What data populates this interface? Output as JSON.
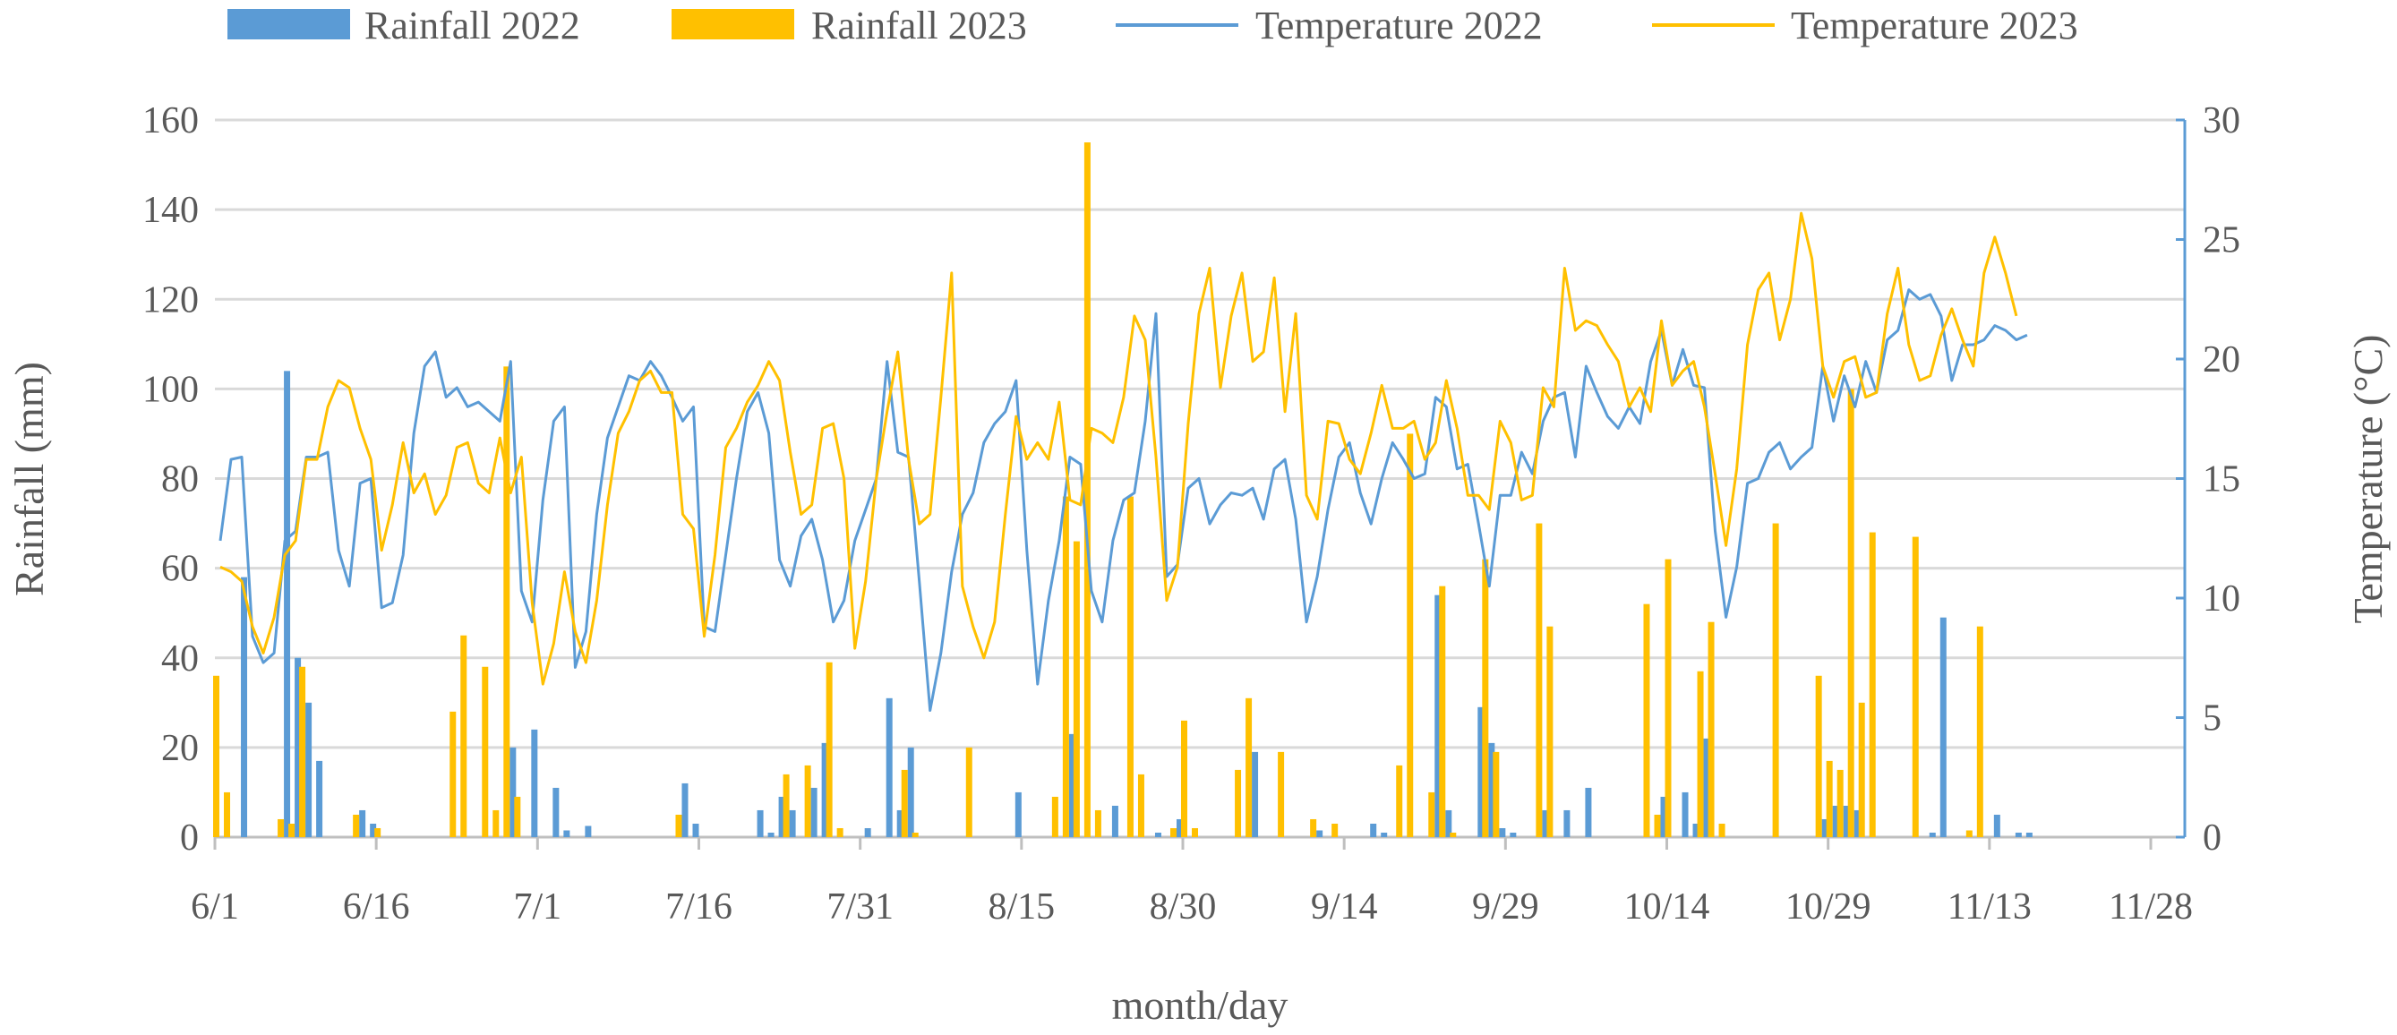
{
  "chart_data": {
    "type": "bar+line",
    "legend_position": "top",
    "legend": [
      "Rainfall 2022",
      "Rainfall 2023",
      "Temperature 2022",
      "Temperature 2023"
    ],
    "xlabel": "month/day",
    "ylabel_left": "Rainfall (mm)",
    "ylabel_right": "Temperature (°C)",
    "ylim_left": [
      0,
      160
    ],
    "ylim_right": [
      0,
      30
    ],
    "yticks_left": [
      "0",
      "20",
      "40",
      "60",
      "80",
      "100",
      "120",
      "140",
      "160"
    ],
    "yticks_right": [
      "0",
      "5",
      "10",
      "15",
      "20",
      "25",
      "30"
    ],
    "x_unit": "day index from 6/1",
    "xlim_days": [
      0,
      180
    ],
    "xticks": [
      {
        "day": 0,
        "label": "6/1"
      },
      {
        "day": 15,
        "label": "6/16"
      },
      {
        "day": 30,
        "label": "7/1"
      },
      {
        "day": 45,
        "label": "7/16"
      },
      {
        "day": 60,
        "label": "7/31"
      },
      {
        "day": 75,
        "label": "8/15"
      },
      {
        "day": 90,
        "label": "8/30"
      },
      {
        "day": 105,
        "label": "9/14"
      },
      {
        "day": 120,
        "label": "9/29"
      },
      {
        "day": 135,
        "label": "10/14"
      },
      {
        "day": 150,
        "label": "10/29"
      },
      {
        "day": 165,
        "label": "11/13"
      },
      {
        "day": 180,
        "label": "11/28"
      }
    ],
    "grid": true,
    "colors": {
      "s2022": "#5B9BD5",
      "s2023": "#FFC000",
      "grid": "#D9D9D9"
    },
    "rainfall_2022": [
      [
        2,
        58
      ],
      [
        6,
        104
      ],
      [
        7,
        40
      ],
      [
        8,
        30
      ],
      [
        9,
        17
      ],
      [
        13,
        6
      ],
      [
        14,
        3
      ],
      [
        27,
        20
      ],
      [
        29,
        24
      ],
      [
        31,
        11
      ],
      [
        32,
        1.5
      ],
      [
        34,
        2.5
      ],
      [
        43,
        12
      ],
      [
        44,
        3
      ],
      [
        50,
        6
      ],
      [
        51,
        1
      ],
      [
        52,
        9
      ],
      [
        53,
        6
      ],
      [
        55,
        11
      ],
      [
        56,
        21
      ],
      [
        60,
        2
      ],
      [
        62,
        31
      ],
      [
        63,
        6
      ],
      [
        64,
        20
      ],
      [
        74,
        10
      ],
      [
        79,
        23
      ],
      [
        83,
        7
      ],
      [
        87,
        1
      ],
      [
        89,
        4
      ],
      [
        96,
        19
      ],
      [
        102,
        1.5
      ],
      [
        107,
        3
      ],
      [
        108,
        1
      ],
      [
        113,
        54
      ],
      [
        114,
        6
      ],
      [
        117,
        29
      ],
      [
        118,
        21
      ],
      [
        119,
        2
      ],
      [
        120,
        1
      ],
      [
        123,
        6
      ],
      [
        125,
        6
      ],
      [
        127,
        11
      ],
      [
        134,
        9
      ],
      [
        136,
        10
      ],
      [
        137,
        3
      ],
      [
        138,
        22
      ],
      [
        149,
        4
      ],
      [
        150,
        7
      ],
      [
        151,
        7
      ],
      [
        152,
        6
      ],
      [
        159,
        1
      ],
      [
        160,
        49
      ],
      [
        165,
        5
      ],
      [
        167,
        1
      ],
      [
        168,
        1
      ]
    ],
    "rainfall_2023": [
      [
        0,
        36
      ],
      [
        1,
        10
      ],
      [
        6,
        4
      ],
      [
        7,
        3
      ],
      [
        8,
        38
      ],
      [
        13,
        5
      ],
      [
        15,
        2
      ],
      [
        22,
        28
      ],
      [
        23,
        45
      ],
      [
        25,
        38
      ],
      [
        26,
        6
      ],
      [
        27,
        105
      ],
      [
        28,
        9
      ],
      [
        43,
        5
      ],
      [
        53,
        14
      ],
      [
        55,
        16
      ],
      [
        57,
        39
      ],
      [
        58,
        2
      ],
      [
        64,
        15
      ],
      [
        65,
        1
      ],
      [
        70,
        20
      ],
      [
        78,
        9
      ],
      [
        79,
        76
      ],
      [
        80,
        66
      ],
      [
        81,
        155
      ],
      [
        82,
        6
      ],
      [
        85,
        76
      ],
      [
        86,
        14
      ],
      [
        89,
        2
      ],
      [
        90,
        26
      ],
      [
        91,
        2
      ],
      [
        95,
        15
      ],
      [
        96,
        31
      ],
      [
        99,
        19
      ],
      [
        102,
        4
      ],
      [
        104,
        3
      ],
      [
        110,
        16
      ],
      [
        111,
        90
      ],
      [
        113,
        10
      ],
      [
        114,
        56
      ],
      [
        115,
        1
      ],
      [
        118,
        62
      ],
      [
        119,
        19
      ],
      [
        123,
        70
      ],
      [
        124,
        47
      ],
      [
        133,
        52
      ],
      [
        134,
        5
      ],
      [
        135,
        62
      ],
      [
        138,
        37
      ],
      [
        139,
        48
      ],
      [
        140,
        3
      ],
      [
        145,
        70
      ],
      [
        149,
        36
      ],
      [
        150,
        17
      ],
      [
        151,
        15
      ],
      [
        152,
        100
      ],
      [
        153,
        30
      ],
      [
        154,
        68
      ],
      [
        158,
        67
      ],
      [
        163,
        1.5
      ],
      [
        164,
        47
      ]
    ],
    "temperature_2022": [
      12.4,
      15.8,
      15.9,
      8.4,
      7.3,
      7.7,
      12.4,
      12.8,
      15.9,
      15.9,
      16.1,
      12.0,
      10.5,
      14.8,
      15.0,
      9.6,
      9.8,
      11.8,
      16.9,
      19.7,
      20.3,
      18.4,
      18.8,
      18.0,
      18.2,
      17.8,
      17.4,
      19.9,
      10.3,
      9.0,
      14.1,
      17.4,
      18.0,
      7.1,
      8.6,
      13.5,
      16.7,
      18.0,
      19.3,
      19.1,
      19.9,
      19.3,
      18.4,
      17.4,
      18.0,
      8.8,
      8.6,
      11.8,
      15.0,
      17.8,
      18.6,
      16.9,
      11.6,
      10.5,
      12.6,
      13.3,
      11.6,
      9.0,
      9.9,
      12.4,
      13.7,
      15.0,
      19.9,
      16.1,
      15.9,
      10.7,
      5.3,
      7.7,
      11.1,
      13.5,
      14.4,
      16.5,
      17.3,
      17.8,
      19.1,
      12.0,
      6.4,
      9.9,
      12.4,
      15.9,
      15.6,
      10.3,
      9.0,
      12.4,
      14.1,
      14.4,
      17.4,
      21.9,
      10.9,
      11.4,
      14.6,
      15.0,
      13.1,
      13.9,
      14.4,
      14.3,
      14.6,
      13.3,
      15.4,
      15.8,
      13.3,
      9.0,
      10.9,
      13.7,
      15.9,
      16.5,
      14.4,
      13.1,
      15.0,
      16.5,
      15.8,
      15.0,
      15.2,
      18.4,
      18.0,
      15.4,
      15.6,
      13.1,
      10.5,
      14.3,
      14.3,
      16.1,
      15.2,
      17.4,
      18.4,
      18.6,
      15.9,
      19.7,
      18.6,
      17.6,
      17.1,
      18.0,
      17.3,
      19.9,
      21.2,
      18.9,
      20.4,
      18.9,
      18.8,
      12.8,
      9.2,
      11.3,
      14.8,
      15.0,
      16.1,
      16.5,
      15.4,
      15.9,
      16.3,
      19.7,
      17.4,
      19.3,
      18.0,
      19.9,
      18.6,
      20.8,
      21.2,
      22.9,
      22.5,
      22.7,
      21.8,
      19.1,
      20.6,
      20.6,
      20.8,
      21.4,
      21.2,
      20.8,
      21.0
    ],
    "temperature_2023": [
      11.3,
      11.1,
      10.7,
      8.8,
      7.7,
      9.2,
      11.8,
      12.4,
      15.8,
      15.8,
      18.0,
      19.1,
      18.8,
      17.1,
      15.8,
      12.0,
      13.9,
      16.5,
      14.4,
      15.2,
      13.5,
      14.3,
      16.3,
      16.5,
      14.8,
      14.4,
      16.7,
      14.4,
      15.9,
      9.8,
      6.4,
      8.1,
      11.1,
      8.6,
      7.3,
      9.9,
      13.9,
      16.9,
      17.8,
      19.1,
      19.5,
      18.6,
      18.6,
      13.5,
      12.9,
      8.4,
      11.8,
      16.3,
      17.1,
      18.2,
      18.9,
      19.9,
      19.1,
      16.1,
      13.5,
      13.9,
      17.1,
      17.3,
      15.0,
      7.9,
      10.7,
      15.0,
      17.8,
      20.3,
      15.8,
      13.1,
      13.5,
      18.4,
      23.6,
      10.5,
      8.8,
      7.5,
      9.0,
      13.5,
      17.6,
      15.8,
      16.5,
      15.8,
      18.2,
      14.1,
      13.9,
      17.1,
      16.9,
      16.5,
      18.4,
      21.8,
      20.8,
      15.9,
      9.9,
      11.3,
      17.3,
      21.9,
      23.8,
      18.8,
      21.8,
      23.6,
      19.9,
      20.3,
      23.4,
      17.8,
      21.9,
      14.3,
      13.3,
      17.4,
      17.3,
      15.8,
      15.2,
      16.9,
      18.9,
      17.1,
      17.1,
      17.4,
      15.8,
      16.5,
      19.1,
      17.1,
      14.3,
      14.3,
      13.7,
      17.4,
      16.5,
      14.1,
      14.3,
      18.8,
      18.0,
      23.8,
      21.2,
      21.6,
      21.4,
      20.6,
      19.9,
      18.0,
      18.8,
      17.8,
      21.6,
      18.9,
      19.5,
      19.9,
      18.0,
      15.2,
      12.2,
      15.4,
      20.6,
      22.9,
      23.6,
      20.8,
      22.5,
      26.1,
      24.2,
      19.7,
      18.4,
      19.9,
      20.1,
      18.4,
      18.6,
      21.9,
      23.8,
      20.6,
      19.1,
      19.3,
      21.0,
      22.1,
      20.8,
      19.7,
      23.6,
      25.1,
      23.6,
      21.8
    ]
  }
}
